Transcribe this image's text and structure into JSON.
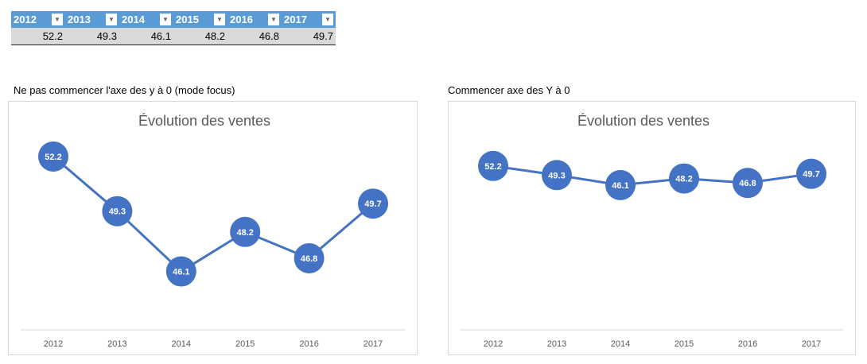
{
  "table": {
    "headers": [
      "2012",
      "2013",
      "2014",
      "2015",
      "2016",
      "2017"
    ],
    "values": [
      "52.2",
      "49.3",
      "46.1",
      "48.2",
      "46.8",
      "49.7"
    ]
  },
  "captions": {
    "left": "Ne pas commencer l'axe des y à 0 (mode focus)",
    "right": "Commencer axe des Y à 0"
  },
  "chart_data": [
    {
      "type": "line",
      "title": "Évolution des ventes",
      "categories": [
        "2012",
        "2013",
        "2014",
        "2015",
        "2016",
        "2017"
      ],
      "values": [
        52.2,
        49.3,
        46.1,
        48.2,
        46.8,
        49.7
      ],
      "ylim": [
        43,
        53
      ],
      "grid": false,
      "data_labels": true,
      "color": "#4472c4"
    },
    {
      "type": "line",
      "title": "Évolution des ventes",
      "categories": [
        "2012",
        "2013",
        "2014",
        "2015",
        "2016",
        "2017"
      ],
      "values": [
        52.2,
        49.3,
        46.1,
        48.2,
        46.8,
        49.7
      ],
      "ylim": [
        0,
        60
      ],
      "grid": false,
      "data_labels": true,
      "color": "#4472c4"
    }
  ]
}
